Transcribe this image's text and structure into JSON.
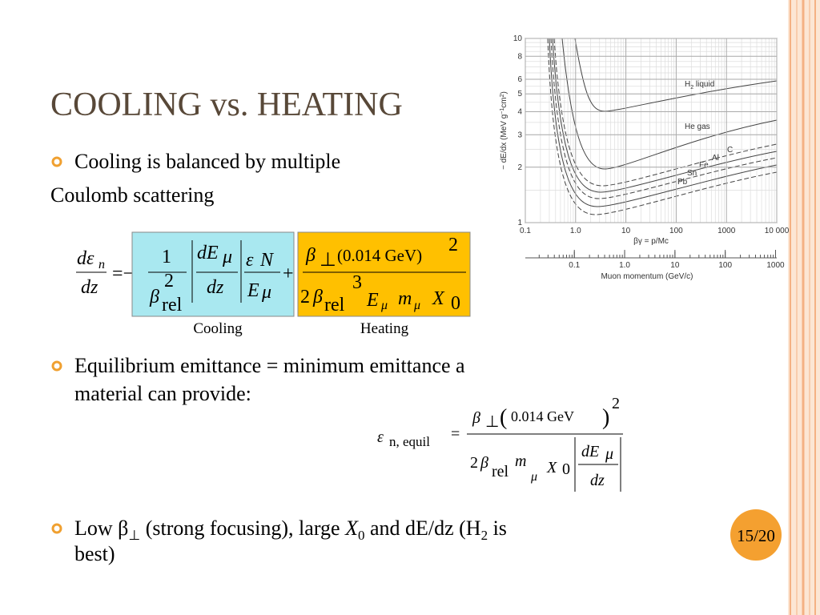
{
  "title": "COOLING vs. HEATING",
  "bullet1": [
    "Cooling is balanced by multiple",
    "Coulomb scattering"
  ],
  "eq1": {
    "lhs": [
      "dε",
      "n",
      "dz",
      "=−"
    ],
    "cool": [
      "1",
      "β",
      "2",
      "rel",
      "dE",
      "μ",
      "dz",
      "ε",
      "N",
      "E",
      "μ"
    ],
    "plus": "+",
    "heat": [
      "β",
      "⊥",
      "(0.014 GeV)",
      "2",
      "2",
      "β",
      "rel",
      "3",
      "E",
      "μ",
      "m",
      "μ",
      "X",
      "0"
    ],
    "labels": [
      "Cooling",
      "Heating"
    ]
  },
  "bullet2": [
    "Equilibrium emittance = minimum emittance a",
    "material can provide:"
  ],
  "eq2": [
    "ε",
    "n, equil",
    "=",
    "β",
    "⊥",
    "(",
    "0.014 GeV",
    ")",
    "2",
    "2",
    "β",
    "rel",
    "m",
    "μ",
    "X",
    "0",
    "dE",
    "μ",
    "dz"
  ],
  "bullet3": [
    "Low β",
    "⊥",
    " (strong focusing), large ",
    "X",
    "0",
    " and dE/dz (H",
    "2",
    " is",
    "best)"
  ],
  "page_number": "15/20",
  "figure": {
    "ylabel": [
      "− dE/dx (MeV g",
      "−1",
      "cm",
      "2",
      ")"
    ],
    "xlabel": "βγ = p/Mc",
    "x2label": "Muon momentum (GeV/c)",
    "xlim": [
      0.1,
      10000
    ],
    "ylim": [
      1,
      10
    ],
    "xticks": [
      0.1,
      {
        "value": 1,
        "label": "1.0"
      },
      10,
      100,
      1000,
      {
        "value": 10000,
        "label": "10 000"
      }
    ],
    "yticks": [
      10,
      8,
      6,
      5,
      4,
      3,
      2,
      1
    ],
    "x2lim": [
      0.0106,
      1057
    ],
    "x2ticks": [
      0.1,
      {
        "value": 1,
        "label": "1.0"
      },
      10,
      100,
      1000
    ],
    "curve_labels": [
      [
        "H",
        "2",
        " liquid"
      ],
      "He gas",
      "C",
      "Al",
      "Fe",
      "Sn",
      "Pb"
    ]
  }
}
